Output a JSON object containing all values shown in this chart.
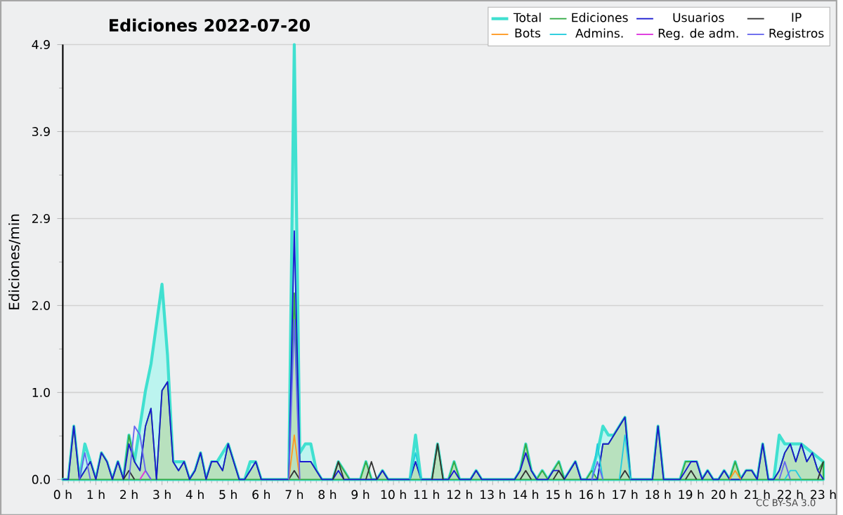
{
  "chart_data": {
    "type": "line",
    "title": "Ediciones  2022-07-20",
    "ylabel": "Ediciones/min",
    "categories": [
      "0 h",
      null,
      null,
      null,
      null,
      null,
      "1 h",
      null,
      null,
      null,
      null,
      null,
      "2 h",
      null,
      null,
      null,
      null,
      null,
      "3 h",
      null,
      null,
      null,
      null,
      null,
      "4 h",
      null,
      null,
      null,
      null,
      null,
      "5 h",
      null,
      null,
      null,
      null,
      null,
      "6 h",
      null,
      null,
      null,
      null,
      null,
      "7 h",
      null,
      null,
      null,
      null,
      null,
      "8 h",
      null,
      null,
      null,
      null,
      null,
      "9 h",
      null,
      null,
      null,
      null,
      null,
      "10 h",
      null,
      null,
      null,
      null,
      null,
      "11 h",
      null,
      null,
      null,
      null,
      null,
      "12 h",
      null,
      null,
      null,
      null,
      null,
      "13 h",
      null,
      null,
      null,
      null,
      null,
      "14 h",
      null,
      null,
      null,
      null,
      null,
      "15 h",
      null,
      null,
      null,
      null,
      null,
      "16 h",
      null,
      null,
      null,
      null,
      null,
      "17 h",
      null,
      null,
      null,
      null,
      null,
      "18 h",
      null,
      null,
      null,
      null,
      null,
      "19 h",
      null,
      null,
      null,
      null,
      null,
      "20 h",
      null,
      null,
      null,
      null,
      null,
      "21 h",
      null,
      null,
      null,
      null,
      null,
      "22 h",
      null,
      null,
      null,
      null,
      null,
      "23 h"
    ],
    "series": [
      {
        "name": "Total",
        "type": "area",
        "color": "#40e0d0",
        "values": [
          0,
          0,
          0.6,
          0,
          0.4,
          0.2,
          0,
          0.3,
          0.2,
          0,
          0.2,
          0,
          0.5,
          0.2,
          null,
          1.0,
          1.3,
          null,
          2.2,
          1.4,
          0.2,
          null,
          0.2,
          0,
          0.1,
          0.3,
          0,
          0.2,
          0.2,
          null,
          0.4,
          0.2,
          0,
          0,
          0.2,
          0.2,
          0,
          0,
          0,
          0,
          0,
          0,
          4.9,
          0.3,
          0.4,
          0.4,
          0.1,
          0,
          0,
          0,
          0.2,
          0.1,
          0,
          0,
          0,
          0.2,
          0,
          0,
          0.1,
          0,
          0,
          0,
          0,
          0,
          0.5,
          0,
          0,
          0,
          0.4,
          0,
          0,
          0.2,
          0,
          0,
          0,
          0.1,
          0,
          0,
          0,
          0,
          0,
          0,
          0,
          0.1,
          0.4,
          0.1,
          0,
          0.1,
          0,
          0.1,
          0.2,
          0,
          0.1,
          0.2,
          0,
          0,
          0.1,
          0.3,
          0.6,
          0.5,
          0.5,
          0.6,
          0.7,
          0,
          0,
          0,
          0,
          0,
          0.6,
          0,
          0,
          0,
          0,
          0.2,
          0.2,
          0.2,
          0,
          0.1,
          0,
          0,
          0.1,
          0,
          0.2,
          0,
          0.1,
          0.1,
          0,
          0.4,
          0,
          0,
          0.5,
          0.4,
          0.4,
          null,
          0.4,
          null,
          0.3,
          null,
          0.2
        ]
      },
      {
        "name": "Ediciones",
        "type": "area",
        "color": "#33aa44",
        "values": [
          0,
          0,
          0.6,
          0,
          0.1,
          0.2,
          0,
          0.3,
          0.2,
          0,
          0.2,
          0,
          0.5,
          0.2,
          0.1,
          0.6,
          0.8,
          0,
          1.0,
          1.1,
          0.2,
          0.1,
          0.2,
          0,
          0.1,
          0.3,
          0,
          0.2,
          0.2,
          0.1,
          0.4,
          0.2,
          0,
          0,
          0.1,
          0.2,
          0,
          0,
          0,
          0,
          0,
          0,
          2.1,
          0.2,
          0.2,
          0.2,
          0.1,
          0,
          0,
          0,
          0.2,
          0.1,
          0,
          0,
          0,
          0.2,
          0,
          0,
          0.1,
          0,
          0,
          0,
          0,
          0,
          0.2,
          0,
          0,
          0,
          0.4,
          0,
          0,
          0.2,
          0,
          0,
          0,
          0.1,
          0,
          0,
          0,
          0,
          0,
          0,
          0,
          0.1,
          0.4,
          0.1,
          0,
          0.1,
          0,
          0.1,
          0.2,
          0,
          0.1,
          0.2,
          0,
          0,
          0.1,
          0,
          0.4,
          0.4,
          0.5,
          0.6,
          0.7,
          0,
          0,
          0,
          0,
          0,
          0.6,
          0,
          0,
          0,
          0,
          0.2,
          0.2,
          0.2,
          0,
          0.1,
          0,
          0,
          0.1,
          0,
          0.2,
          0,
          0.1,
          0.1,
          0,
          0.4,
          0,
          0,
          0.1,
          0.3,
          0.4,
          0.2,
          0.4,
          0.2,
          0.3,
          0.1,
          0.2
        ]
      },
      {
        "name": "Usuarios",
        "color": "#1a1ad0",
        "values": [
          0,
          0,
          0.6,
          0,
          0.1,
          0.2,
          0,
          0.3,
          0.2,
          0,
          0.2,
          0,
          0.4,
          0.2,
          0.1,
          0.6,
          0.8,
          0,
          1.0,
          1.1,
          0.2,
          0.1,
          0.2,
          0,
          0.1,
          0.3,
          0,
          0.2,
          0.2,
          0.1,
          0.4,
          0.2,
          0,
          0,
          0.1,
          0.2,
          0,
          0,
          0,
          0,
          0,
          0,
          2.8,
          0.2,
          0.2,
          0.2,
          0.1,
          0,
          0,
          0,
          0.1,
          0,
          0,
          0,
          0,
          0,
          0,
          0,
          0.1,
          0,
          0,
          0,
          0,
          0,
          0.2,
          0,
          0,
          0,
          0,
          0,
          0,
          0.1,
          0,
          0,
          0,
          0.1,
          0,
          0,
          0,
          0,
          0,
          0,
          0,
          0.1,
          0.3,
          0.1,
          0,
          0,
          0,
          0.1,
          0.1,
          0,
          0.1,
          0.2,
          0,
          0,
          0,
          0,
          0.4,
          0.4,
          0.5,
          0.6,
          0.7,
          0,
          0,
          0,
          0,
          0,
          0.6,
          0,
          0,
          0,
          0,
          0.1,
          0.2,
          0.2,
          0,
          0.1,
          0,
          0,
          0.1,
          0,
          0,
          0,
          0.1,
          0.1,
          0,
          0.4,
          0,
          0,
          0.1,
          0.3,
          0.4,
          0.2,
          0.4,
          0.2,
          0.3,
          0.1,
          0
        ]
      },
      {
        "name": "IP",
        "color": "#333333",
        "values": [
          null,
          null,
          null,
          null,
          null,
          null,
          null,
          null,
          null,
          null,
          null,
          0,
          0.1,
          0,
          null,
          null,
          null,
          null,
          null,
          null,
          null,
          null,
          null,
          null,
          null,
          null,
          null,
          null,
          null,
          null,
          null,
          null,
          null,
          null,
          null,
          null,
          null,
          null,
          null,
          null,
          null,
          0,
          0.1,
          0,
          null,
          null,
          null,
          null,
          null,
          0,
          0.2,
          0,
          null,
          null,
          null,
          0,
          0.2,
          0,
          null,
          null,
          null,
          null,
          null,
          null,
          null,
          null,
          null,
          0,
          0.4,
          0,
          null,
          null,
          null,
          null,
          null,
          null,
          null,
          null,
          null,
          null,
          null,
          null,
          null,
          0,
          0.1,
          0,
          null,
          null,
          null,
          0,
          0.1,
          0,
          null,
          null,
          null,
          null,
          null,
          null,
          null,
          null,
          null,
          0,
          0.1,
          0,
          null,
          null,
          null,
          null,
          null,
          null,
          null,
          null,
          null,
          0,
          0.1,
          0,
          null,
          null,
          null,
          null,
          null,
          null,
          null,
          null,
          null,
          null,
          null,
          null,
          null,
          null,
          null,
          null,
          null,
          null,
          null,
          null,
          null,
          0,
          0.2
        ]
      },
      {
        "name": "Bots",
        "color": "#ff9922",
        "values": [
          null,
          null,
          null,
          null,
          null,
          null,
          null,
          null,
          null,
          null,
          null,
          null,
          null,
          null,
          null,
          null,
          null,
          null,
          null,
          null,
          null,
          null,
          null,
          null,
          null,
          null,
          null,
          null,
          null,
          null,
          null,
          null,
          null,
          null,
          null,
          null,
          null,
          null,
          null,
          null,
          null,
          0,
          0.5,
          0,
          null,
          null,
          null,
          null,
          null,
          null,
          null,
          null,
          null,
          null,
          null,
          null,
          null,
          null,
          null,
          null,
          null,
          null,
          null,
          null,
          null,
          null,
          null,
          null,
          null,
          null,
          null,
          null,
          null,
          null,
          null,
          null,
          null,
          null,
          null,
          null,
          null,
          null,
          null,
          null,
          null,
          null,
          null,
          null,
          null,
          null,
          null,
          null,
          null,
          null,
          null,
          null,
          null,
          null,
          null,
          null,
          null,
          null,
          null,
          null,
          null,
          null,
          null,
          null,
          null,
          null,
          null,
          null,
          null,
          null,
          null,
          null,
          null,
          null,
          null,
          null,
          null,
          0,
          0.1,
          0,
          null,
          null,
          null,
          null,
          null,
          null,
          null,
          null,
          null,
          null,
          null,
          null,
          null,
          null,
          null
        ]
      },
      {
        "name": "Admins.",
        "color": "#22ccdd",
        "values": [
          null,
          null,
          null,
          null,
          null,
          null,
          null,
          null,
          null,
          null,
          null,
          null,
          null,
          null,
          null,
          null,
          null,
          null,
          null,
          null,
          null,
          null,
          null,
          null,
          null,
          null,
          null,
          null,
          null,
          null,
          null,
          null,
          null,
          null,
          null,
          null,
          null,
          null,
          null,
          null,
          null,
          null,
          null,
          null,
          null,
          null,
          null,
          null,
          null,
          null,
          null,
          null,
          null,
          null,
          null,
          null,
          null,
          null,
          null,
          null,
          null,
          null,
          null,
          0,
          0.3,
          0,
          null,
          null,
          null,
          null,
          null,
          null,
          null,
          null,
          null,
          null,
          null,
          null,
          null,
          null,
          null,
          null,
          null,
          null,
          null,
          null,
          null,
          null,
          null,
          null,
          null,
          null,
          null,
          null,
          null,
          null,
          0,
          0.4,
          0,
          null,
          null,
          0,
          0.5,
          0,
          null,
          null,
          null,
          null,
          null,
          null,
          null,
          null,
          null,
          null,
          null,
          null,
          null,
          null,
          null,
          null,
          null,
          null,
          null,
          null,
          null,
          null,
          null,
          null,
          null,
          null,
          null,
          0,
          0.1,
          0.1,
          0,
          null,
          null,
          null,
          null
        ]
      },
      {
        "name": "Reg. de adm.",
        "color": "#dd33dd",
        "values": [
          null,
          null,
          null,
          null,
          null,
          null,
          null,
          null,
          null,
          null,
          null,
          null,
          null,
          null,
          0,
          0.1,
          0,
          null,
          null,
          null,
          null,
          null,
          null,
          null,
          null,
          null,
          null,
          null,
          null,
          null,
          null,
          null,
          null,
          null,
          null,
          null,
          null,
          null,
          null,
          null,
          null,
          null,
          null,
          null,
          null,
          null,
          null,
          null,
          null,
          null,
          null,
          null,
          null,
          null,
          null,
          null,
          null,
          null,
          null,
          null,
          null,
          null,
          null,
          null,
          null,
          null,
          null,
          null,
          null,
          null,
          null,
          null,
          null,
          null,
          null,
          null,
          null,
          null,
          null,
          null,
          null,
          null,
          null,
          null,
          null,
          null,
          null,
          null,
          null,
          null,
          null,
          null,
          null,
          null,
          null,
          null,
          null,
          null,
          null,
          null,
          null,
          null,
          null,
          null,
          null,
          null,
          null,
          null,
          null,
          null,
          null,
          null,
          null,
          null,
          null,
          null,
          null,
          null,
          null,
          null,
          null,
          null,
          null,
          null,
          null,
          null,
          null,
          null,
          null,
          null,
          null,
          null,
          null,
          null,
          null,
          null,
          null,
          null,
          null
        ]
      },
      {
        "name": "Registros",
        "color": "#6666ee",
        "values": [
          null,
          null,
          null,
          0,
          0.3,
          0,
          null,
          null,
          null,
          null,
          null,
          null,
          0,
          0.6,
          0.5,
          0.1,
          0,
          null,
          null,
          null,
          null,
          null,
          null,
          null,
          null,
          null,
          null,
          null,
          null,
          null,
          null,
          null,
          null,
          null,
          null,
          null,
          null,
          null,
          null,
          null,
          null,
          0,
          1.8,
          0,
          null,
          null,
          null,
          null,
          null,
          null,
          null,
          null,
          null,
          null,
          null,
          null,
          null,
          null,
          null,
          null,
          null,
          null,
          null,
          null,
          null,
          null,
          null,
          null,
          null,
          null,
          null,
          null,
          null,
          null,
          null,
          null,
          null,
          null,
          null,
          null,
          null,
          null,
          null,
          null,
          null,
          null,
          null,
          null,
          null,
          null,
          null,
          null,
          null,
          null,
          null,
          null,
          0,
          0.2,
          0,
          null,
          null,
          null,
          null,
          null,
          null,
          null,
          null,
          null,
          null,
          null,
          null,
          null,
          null,
          null,
          null,
          null,
          null,
          null,
          null,
          null,
          null,
          null,
          null,
          null,
          null,
          null,
          null,
          null,
          null,
          null,
          0,
          0.2,
          0,
          null,
          null,
          null,
          null,
          null,
          null
        ]
      }
    ],
    "ylim": [
      0,
      4.9
    ],
    "yticks": [
      {
        "value": 0,
        "label": "0.0"
      },
      {
        "value": 0.98,
        "label": "1.0"
      },
      {
        "value": 1.96,
        "label": "2.0"
      },
      {
        "value": 2.94,
        "label": "2.9"
      },
      {
        "value": 3.92,
        "label": "3.9"
      },
      4.9
    ],
    "grid": "y",
    "legend": "top right",
    "marker": "none",
    "line_style": "solid",
    "annotations": [
      "CC BY-SA 3.0"
    ]
  }
}
